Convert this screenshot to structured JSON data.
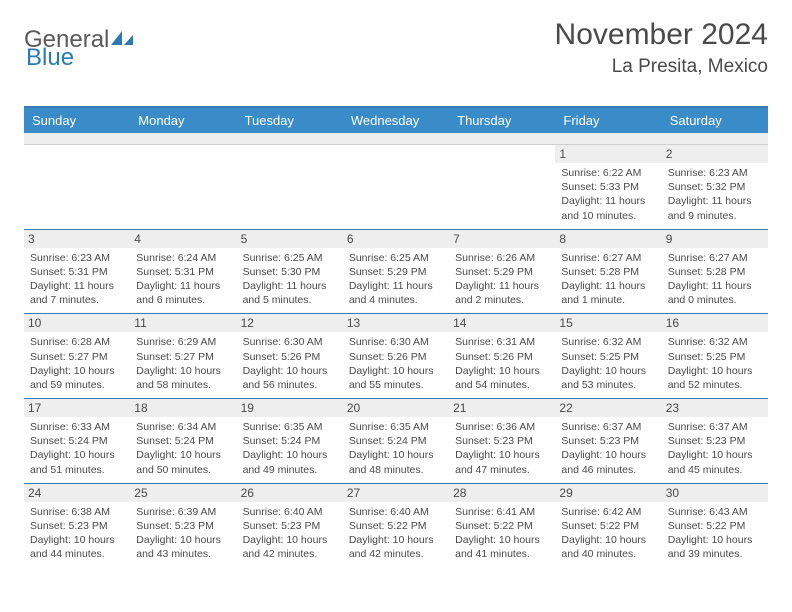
{
  "brand": {
    "general": "General",
    "blue": "Blue"
  },
  "header": {
    "month": "November 2024",
    "location": "La Presita, Mexico"
  },
  "colors": {
    "header_bar": "#3a8cc9",
    "week_border": "#3a7ab5",
    "daynum_bg": "#eeeeee",
    "text": "#4a4a4a",
    "brand_blue": "#2a7ab8"
  },
  "daysOfWeek": [
    "Sunday",
    "Monday",
    "Tuesday",
    "Wednesday",
    "Thursday",
    "Friday",
    "Saturday"
  ],
  "weeks": [
    [
      null,
      null,
      null,
      null,
      null,
      {
        "n": "1",
        "sunrise": "Sunrise: 6:22 AM",
        "sunset": "Sunset: 5:33 PM",
        "daylight": "Daylight: 11 hours and 10 minutes."
      },
      {
        "n": "2",
        "sunrise": "Sunrise: 6:23 AM",
        "sunset": "Sunset: 5:32 PM",
        "daylight": "Daylight: 11 hours and 9 minutes."
      }
    ],
    [
      {
        "n": "3",
        "sunrise": "Sunrise: 6:23 AM",
        "sunset": "Sunset: 5:31 PM",
        "daylight": "Daylight: 11 hours and 7 minutes."
      },
      {
        "n": "4",
        "sunrise": "Sunrise: 6:24 AM",
        "sunset": "Sunset: 5:31 PM",
        "daylight": "Daylight: 11 hours and 6 minutes."
      },
      {
        "n": "5",
        "sunrise": "Sunrise: 6:25 AM",
        "sunset": "Sunset: 5:30 PM",
        "daylight": "Daylight: 11 hours and 5 minutes."
      },
      {
        "n": "6",
        "sunrise": "Sunrise: 6:25 AM",
        "sunset": "Sunset: 5:29 PM",
        "daylight": "Daylight: 11 hours and 4 minutes."
      },
      {
        "n": "7",
        "sunrise": "Sunrise: 6:26 AM",
        "sunset": "Sunset: 5:29 PM",
        "daylight": "Daylight: 11 hours and 2 minutes."
      },
      {
        "n": "8",
        "sunrise": "Sunrise: 6:27 AM",
        "sunset": "Sunset: 5:28 PM",
        "daylight": "Daylight: 11 hours and 1 minute."
      },
      {
        "n": "9",
        "sunrise": "Sunrise: 6:27 AM",
        "sunset": "Sunset: 5:28 PM",
        "daylight": "Daylight: 11 hours and 0 minutes."
      }
    ],
    [
      {
        "n": "10",
        "sunrise": "Sunrise: 6:28 AM",
        "sunset": "Sunset: 5:27 PM",
        "daylight": "Daylight: 10 hours and 59 minutes."
      },
      {
        "n": "11",
        "sunrise": "Sunrise: 6:29 AM",
        "sunset": "Sunset: 5:27 PM",
        "daylight": "Daylight: 10 hours and 58 minutes."
      },
      {
        "n": "12",
        "sunrise": "Sunrise: 6:30 AM",
        "sunset": "Sunset: 5:26 PM",
        "daylight": "Daylight: 10 hours and 56 minutes."
      },
      {
        "n": "13",
        "sunrise": "Sunrise: 6:30 AM",
        "sunset": "Sunset: 5:26 PM",
        "daylight": "Daylight: 10 hours and 55 minutes."
      },
      {
        "n": "14",
        "sunrise": "Sunrise: 6:31 AM",
        "sunset": "Sunset: 5:26 PM",
        "daylight": "Daylight: 10 hours and 54 minutes."
      },
      {
        "n": "15",
        "sunrise": "Sunrise: 6:32 AM",
        "sunset": "Sunset: 5:25 PM",
        "daylight": "Daylight: 10 hours and 53 minutes."
      },
      {
        "n": "16",
        "sunrise": "Sunrise: 6:32 AM",
        "sunset": "Sunset: 5:25 PM",
        "daylight": "Daylight: 10 hours and 52 minutes."
      }
    ],
    [
      {
        "n": "17",
        "sunrise": "Sunrise: 6:33 AM",
        "sunset": "Sunset: 5:24 PM",
        "daylight": "Daylight: 10 hours and 51 minutes."
      },
      {
        "n": "18",
        "sunrise": "Sunrise: 6:34 AM",
        "sunset": "Sunset: 5:24 PM",
        "daylight": "Daylight: 10 hours and 50 minutes."
      },
      {
        "n": "19",
        "sunrise": "Sunrise: 6:35 AM",
        "sunset": "Sunset: 5:24 PM",
        "daylight": "Daylight: 10 hours and 49 minutes."
      },
      {
        "n": "20",
        "sunrise": "Sunrise: 6:35 AM",
        "sunset": "Sunset: 5:24 PM",
        "daylight": "Daylight: 10 hours and 48 minutes."
      },
      {
        "n": "21",
        "sunrise": "Sunrise: 6:36 AM",
        "sunset": "Sunset: 5:23 PM",
        "daylight": "Daylight: 10 hours and 47 minutes."
      },
      {
        "n": "22",
        "sunrise": "Sunrise: 6:37 AM",
        "sunset": "Sunset: 5:23 PM",
        "daylight": "Daylight: 10 hours and 46 minutes."
      },
      {
        "n": "23",
        "sunrise": "Sunrise: 6:37 AM",
        "sunset": "Sunset: 5:23 PM",
        "daylight": "Daylight: 10 hours and 45 minutes."
      }
    ],
    [
      {
        "n": "24",
        "sunrise": "Sunrise: 6:38 AM",
        "sunset": "Sunset: 5:23 PM",
        "daylight": "Daylight: 10 hours and 44 minutes."
      },
      {
        "n": "25",
        "sunrise": "Sunrise: 6:39 AM",
        "sunset": "Sunset: 5:23 PM",
        "daylight": "Daylight: 10 hours and 43 minutes."
      },
      {
        "n": "26",
        "sunrise": "Sunrise: 6:40 AM",
        "sunset": "Sunset: 5:23 PM",
        "daylight": "Daylight: 10 hours and 42 minutes."
      },
      {
        "n": "27",
        "sunrise": "Sunrise: 6:40 AM",
        "sunset": "Sunset: 5:22 PM",
        "daylight": "Daylight: 10 hours and 42 minutes."
      },
      {
        "n": "28",
        "sunrise": "Sunrise: 6:41 AM",
        "sunset": "Sunset: 5:22 PM",
        "daylight": "Daylight: 10 hours and 41 minutes."
      },
      {
        "n": "29",
        "sunrise": "Sunrise: 6:42 AM",
        "sunset": "Sunset: 5:22 PM",
        "daylight": "Daylight: 10 hours and 40 minutes."
      },
      {
        "n": "30",
        "sunrise": "Sunrise: 6:43 AM",
        "sunset": "Sunset: 5:22 PM",
        "daylight": "Daylight: 10 hours and 39 minutes."
      }
    ]
  ]
}
